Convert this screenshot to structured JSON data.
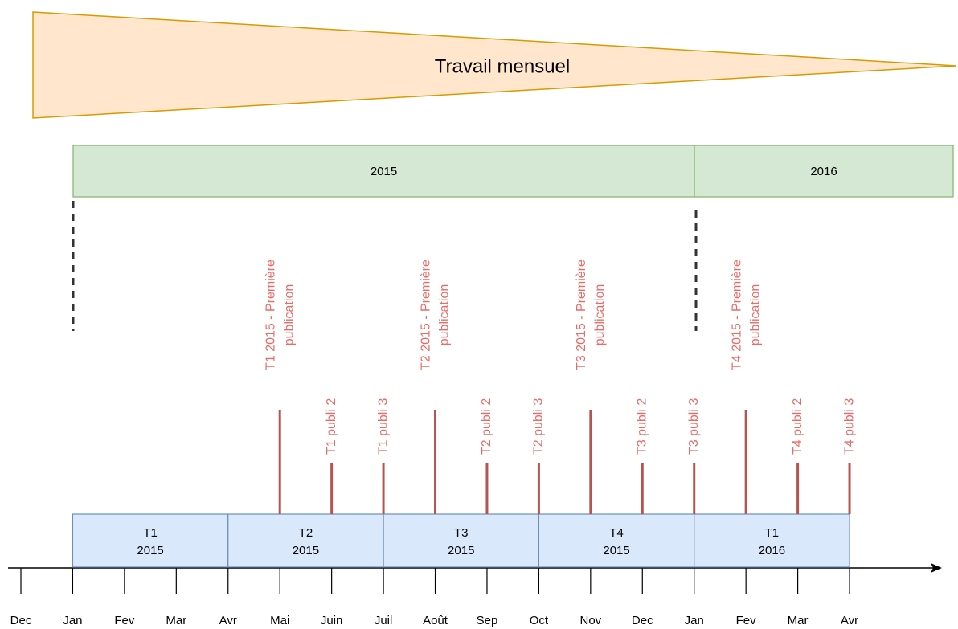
{
  "title": "Travail mensuel",
  "years": [
    "2015",
    "2016"
  ],
  "quarters": [
    [
      "T1",
      "2015"
    ],
    [
      "T2",
      "2015"
    ],
    [
      "T3",
      "2015"
    ],
    [
      "T4",
      "2015"
    ],
    [
      "T1",
      "2016"
    ]
  ],
  "months": [
    "Dec",
    "Jan",
    "Fev",
    "Mar",
    "Avr",
    "Mai",
    "Juin",
    "Juil",
    "Août",
    "Sep",
    "Oct",
    "Nov",
    "Dec",
    "Jan",
    "Fev",
    "Mar",
    "Avr"
  ],
  "publications": [
    [
      "T1 2015 - Première",
      "publication"
    ],
    [
      "T1 publi 2"
    ],
    [
      "T1 publi 3"
    ],
    [
      "T2 2015 - Première",
      "publication"
    ],
    [
      "T2 publi 2"
    ],
    [
      "T2 publi 3"
    ],
    [
      "T3 2015 - Première",
      "publication"
    ],
    [
      "T3 publi 2"
    ],
    [
      "T3 publi 3"
    ],
    [
      "T4 2015 - Première",
      "publication"
    ],
    [
      "T4 publi 2"
    ],
    [
      "T4 publi 3"
    ]
  ]
}
